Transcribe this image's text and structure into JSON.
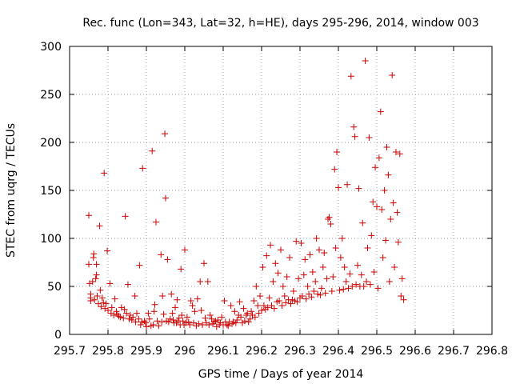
{
  "chart_data": {
    "type": "scatter",
    "title": "Rec. func (Lon=343, Lat=32, h=HE), days 295-296, 2014, window 003",
    "xlabel": "GPS time / Days of year 2014",
    "ylabel": "STEC from uqrg / TECUs",
    "xlim": [
      295.7,
      296.8
    ],
    "ylim": [
      0,
      300
    ],
    "xticks": [
      295.7,
      295.8,
      295.9,
      296,
      296.1,
      296.2,
      296.3,
      296.4,
      296.5,
      296.6,
      296.7,
      296.8
    ],
    "xtick_labels": [
      "295.7",
      "295.8",
      "295.9",
      "296",
      "296.1",
      "296.2",
      "296.3",
      "296.4",
      "296.5",
      "296.6",
      "296.7",
      "296.8"
    ],
    "yticks": [
      0,
      50,
      100,
      150,
      200,
      250,
      300
    ],
    "ytick_labels": [
      "0",
      "50",
      "100",
      "150",
      "200",
      "250",
      "300"
    ],
    "grid": true,
    "marker": "+",
    "color": "#cc0000",
    "series": [
      {
        "points": [
          [
            295.75,
            124
          ],
          [
            295.75,
            73
          ],
          [
            295.752,
            53
          ],
          [
            295.755,
            42
          ],
          [
            295.755,
            38
          ],
          [
            295.755,
            35
          ],
          [
            295.76,
            55
          ],
          [
            295.762,
            80
          ],
          [
            295.763,
            84
          ],
          [
            295.765,
            36
          ],
          [
            295.768,
            58
          ],
          [
            295.77,
            62
          ],
          [
            295.77,
            73
          ],
          [
            295.772,
            40
          ],
          [
            295.775,
            32
          ],
          [
            295.778,
            113
          ],
          [
            295.78,
            46
          ],
          [
            295.782,
            29
          ],
          [
            295.785,
            38
          ],
          [
            295.788,
            33
          ],
          [
            295.79,
            168
          ],
          [
            295.792,
            27
          ],
          [
            295.795,
            32
          ],
          [
            295.798,
            87
          ],
          [
            295.8,
            25
          ],
          [
            295.805,
            53
          ],
          [
            295.808,
            22
          ],
          [
            295.81,
            28
          ],
          [
            295.815,
            20
          ],
          [
            295.818,
            37
          ],
          [
            295.822,
            24
          ],
          [
            295.825,
            21
          ],
          [
            295.828,
            19
          ],
          [
            295.832,
            18
          ],
          [
            295.835,
            28
          ],
          [
            295.84,
            17
          ],
          [
            295.843,
            26
          ],
          [
            295.845,
            123
          ],
          [
            295.848,
            22
          ],
          [
            295.852,
            52
          ],
          [
            295.855,
            16
          ],
          [
            295.858,
            20
          ],
          [
            295.862,
            15
          ],
          [
            295.865,
            18
          ],
          [
            295.87,
            40
          ],
          [
            295.872,
            13
          ],
          [
            295.875,
            22
          ],
          [
            295.88,
            16
          ],
          [
            295.882,
            72
          ],
          [
            295.885,
            10
          ],
          [
            295.888,
            13
          ],
          [
            295.89,
            173
          ],
          [
            295.895,
            14
          ],
          [
            295.898,
            12
          ],
          [
            295.9,
            8
          ],
          [
            295.905,
            22
          ],
          [
            295.908,
            16
          ],
          [
            295.912,
            9
          ],
          [
            295.915,
            191
          ],
          [
            295.918,
            10
          ],
          [
            295.92,
            24
          ],
          [
            295.922,
            31
          ],
          [
            295.925,
            117
          ],
          [
            295.928,
            14
          ],
          [
            295.932,
            9
          ],
          [
            295.938,
            83
          ],
          [
            295.94,
            13
          ],
          [
            295.942,
            40
          ],
          [
            295.945,
            21
          ],
          [
            295.948,
            209
          ],
          [
            295.95,
            142
          ],
          [
            295.952,
            14
          ],
          [
            295.955,
            78
          ],
          [
            295.958,
            13
          ],
          [
            295.962,
            16
          ],
          [
            295.965,
            42
          ],
          [
            295.968,
            22
          ],
          [
            295.97,
            15
          ],
          [
            295.972,
            12
          ],
          [
            295.975,
            28
          ],
          [
            295.978,
            12
          ],
          [
            295.98,
            36
          ],
          [
            295.982,
            14
          ],
          [
            295.985,
            17
          ],
          [
            295.988,
            10
          ],
          [
            295.99,
            68
          ],
          [
            295.992,
            20
          ],
          [
            295.995,
            14
          ],
          [
            295.998,
            10
          ],
          [
            296.0,
            88
          ],
          [
            296.003,
            12
          ],
          [
            296.006,
            18
          ],
          [
            296.01,
            13
          ],
          [
            296.013,
            10
          ],
          [
            296.016,
            35
          ],
          [
            296.02,
            30
          ],
          [
            296.023,
            12
          ],
          [
            296.026,
            24
          ],
          [
            296.03,
            9
          ],
          [
            296.033,
            37
          ],
          [
            296.036,
            11
          ],
          [
            296.04,
            55
          ],
          [
            296.043,
            25
          ],
          [
            296.046,
            10
          ],
          [
            296.05,
            74
          ],
          [
            296.053,
            17
          ],
          [
            296.056,
            12
          ],
          [
            296.06,
            55
          ],
          [
            296.063,
            10
          ],
          [
            296.066,
            20
          ],
          [
            296.07,
            16
          ],
          [
            296.073,
            11
          ],
          [
            296.076,
            13
          ],
          [
            296.08,
            14
          ],
          [
            296.083,
            8
          ],
          [
            296.086,
            15
          ],
          [
            296.09,
            10
          ],
          [
            296.093,
            12
          ],
          [
            296.096,
            18
          ],
          [
            296.1,
            10
          ],
          [
            296.103,
            35
          ],
          [
            296.106,
            13
          ],
          [
            296.11,
            10
          ],
          [
            296.113,
            9
          ],
          [
            296.116,
            13
          ],
          [
            296.12,
            30
          ],
          [
            296.123,
            11
          ],
          [
            296.126,
            13
          ],
          [
            296.13,
            24
          ],
          [
            296.133,
            12
          ],
          [
            296.136,
            15
          ],
          [
            296.14,
            20
          ],
          [
            296.143,
            34
          ],
          [
            296.146,
            18
          ],
          [
            296.15,
            12
          ],
          [
            296.153,
            27
          ],
          [
            296.156,
            14
          ],
          [
            296.16,
            20
          ],
          [
            296.163,
            22
          ],
          [
            296.166,
            13
          ],
          [
            296.17,
            16
          ],
          [
            296.173,
            24
          ],
          [
            296.176,
            20
          ],
          [
            296.18,
            35
          ],
          [
            296.183,
            18
          ],
          [
            296.186,
            50
          ],
          [
            296.19,
            30
          ],
          [
            296.193,
            22
          ],
          [
            296.196,
            40
          ],
          [
            296.2,
            25
          ],
          [
            296.203,
            70
          ],
          [
            296.206,
            30
          ],
          [
            296.21,
            26
          ],
          [
            296.213,
            82
          ],
          [
            296.216,
            28
          ],
          [
            296.22,
            38
          ],
          [
            296.223,
            93
          ],
          [
            296.226,
            30
          ],
          [
            296.23,
            55
          ],
          [
            296.233,
            27
          ],
          [
            296.236,
            74
          ],
          [
            296.24,
            34
          ],
          [
            296.243,
            64
          ],
          [
            296.246,
            35
          ],
          [
            296.25,
            88
          ],
          [
            296.253,
            30
          ],
          [
            296.256,
            50
          ],
          [
            296.26,
            40
          ],
          [
            296.263,
            33
          ],
          [
            296.266,
            60
          ],
          [
            296.27,
            36
          ],
          [
            296.273,
            80
          ],
          [
            296.276,
            32
          ],
          [
            296.28,
            36
          ],
          [
            296.283,
            45
          ],
          [
            296.286,
            35
          ],
          [
            296.29,
            97
          ],
          [
            296.293,
            34
          ],
          [
            296.296,
            58
          ],
          [
            296.3,
            38
          ],
          [
            296.303,
            95
          ],
          [
            296.306,
            40
          ],
          [
            296.31,
            62
          ],
          [
            296.313,
            78
          ],
          [
            296.316,
            37
          ],
          [
            296.32,
            50
          ],
          [
            296.323,
            42
          ],
          [
            296.326,
            83
          ],
          [
            296.33,
            39
          ],
          [
            296.333,
            65
          ],
          [
            296.336,
            45
          ],
          [
            296.34,
            55
          ],
          [
            296.343,
            100
          ],
          [
            296.346,
            42
          ],
          [
            296.35,
            88
          ],
          [
            296.353,
            41
          ],
          [
            296.356,
            48
          ],
          [
            296.36,
            70
          ],
          [
            296.363,
            85
          ],
          [
            296.366,
            43
          ],
          [
            296.37,
            58
          ],
          [
            296.373,
            120
          ],
          [
            296.376,
            122
          ],
          [
            296.38,
            115
          ],
          [
            296.383,
            45
          ],
          [
            296.386,
            60
          ],
          [
            296.39,
            172
          ],
          [
            296.393,
            90
          ],
          [
            296.396,
            190
          ],
          [
            296.4,
            153
          ],
          [
            296.403,
            46
          ],
          [
            296.406,
            80
          ],
          [
            296.41,
            100
          ],
          [
            296.413,
            47
          ],
          [
            296.416,
            70
          ],
          [
            296.42,
            55
          ],
          [
            296.423,
            156
          ],
          [
            296.426,
            48
          ],
          [
            296.43,
            63
          ],
          [
            296.433,
            269
          ],
          [
            296.436,
            50
          ],
          [
            296.44,
            216
          ],
          [
            296.443,
            206
          ],
          [
            296.446,
            52
          ],
          [
            296.45,
            72
          ],
          [
            296.453,
            152
          ],
          [
            296.456,
            50
          ],
          [
            296.46,
            62
          ],
          [
            296.463,
            116
          ],
          [
            296.466,
            50
          ],
          [
            296.47,
            285
          ],
          [
            296.473,
            55
          ],
          [
            296.476,
            90
          ],
          [
            296.48,
            205
          ],
          [
            296.483,
            52
          ],
          [
            296.486,
            103
          ],
          [
            296.49,
            138
          ],
          [
            296.493,
            65
          ],
          [
            296.496,
            174
          ],
          [
            296.5,
            133
          ],
          [
            296.503,
            48
          ],
          [
            296.506,
            184
          ],
          [
            296.51,
            232
          ],
          [
            296.513,
            130
          ],
          [
            296.516,
            80
          ],
          [
            296.52,
            150
          ],
          [
            296.523,
            98
          ],
          [
            296.526,
            195
          ],
          [
            296.53,
            166
          ],
          [
            296.533,
            55
          ],
          [
            296.536,
            120
          ],
          [
            296.54,
            270
          ],
          [
            296.543,
            137
          ],
          [
            296.546,
            70
          ],
          [
            296.55,
            190
          ],
          [
            296.553,
            127
          ],
          [
            296.556,
            96
          ],
          [
            296.56,
            188
          ],
          [
            296.563,
            40
          ],
          [
            296.566,
            58
          ],
          [
            296.57,
            36
          ]
        ]
      }
    ]
  }
}
